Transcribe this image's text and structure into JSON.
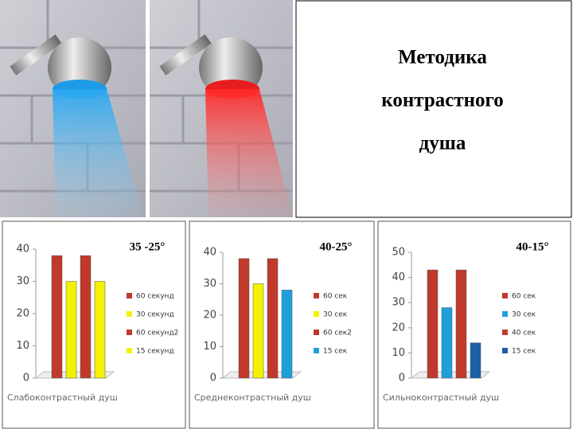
{
  "title_lines": [
    "Методика",
    "контрастного",
    "душа"
  ],
  "chart_data": [
    {
      "type": "bar",
      "annotation": "35 -25°",
      "x_label": "Слабоконтрастный душ",
      "ylim": [
        0,
        40
      ],
      "yticks": [
        0,
        10,
        20,
        30,
        40
      ],
      "series": [
        {
          "name": "60 секунд",
          "color": "#c0392b",
          "values": [
            38
          ]
        },
        {
          "name": "30 секунд",
          "color": "#f2f200",
          "values": [
            30
          ]
        },
        {
          "name": "60 секунд2",
          "color": "#c0392b",
          "values": [
            38
          ]
        },
        {
          "name": "15 секунд",
          "color": "#f2f200",
          "values": [
            30
          ]
        }
      ]
    },
    {
      "type": "bar",
      "annotation": "40-25°",
      "x_label": "Среднеконтрастный душ",
      "ylim": [
        0,
        40
      ],
      "yticks": [
        0,
        10,
        20,
        30,
        40
      ],
      "series": [
        {
          "name": "60 сек",
          "color": "#c0392b",
          "values": [
            38
          ]
        },
        {
          "name": "30 сек",
          "color": "#f2f200",
          "values": [
            30
          ]
        },
        {
          "name": "60 сек2",
          "color": "#c0392b",
          "values": [
            38
          ]
        },
        {
          "name": "15 сек",
          "color": "#1ea0dc",
          "values": [
            28
          ]
        }
      ]
    },
    {
      "type": "bar",
      "annotation": "40-15°",
      "x_label": "Сильноконтрастный душ",
      "ylim": [
        0,
        50
      ],
      "yticks": [
        0,
        10,
        20,
        30,
        40,
        50
      ],
      "series": [
        {
          "name": "60 сек",
          "color": "#c0392b",
          "values": [
            43
          ]
        },
        {
          "name": "30 сек",
          "color": "#1ea0dc",
          "values": [
            28
          ]
        },
        {
          "name": "40 сек",
          "color": "#c0392b",
          "values": [
            43
          ]
        },
        {
          "name": "15 сек",
          "color": "#1f5fa8",
          "values": [
            14
          ]
        }
      ]
    }
  ]
}
